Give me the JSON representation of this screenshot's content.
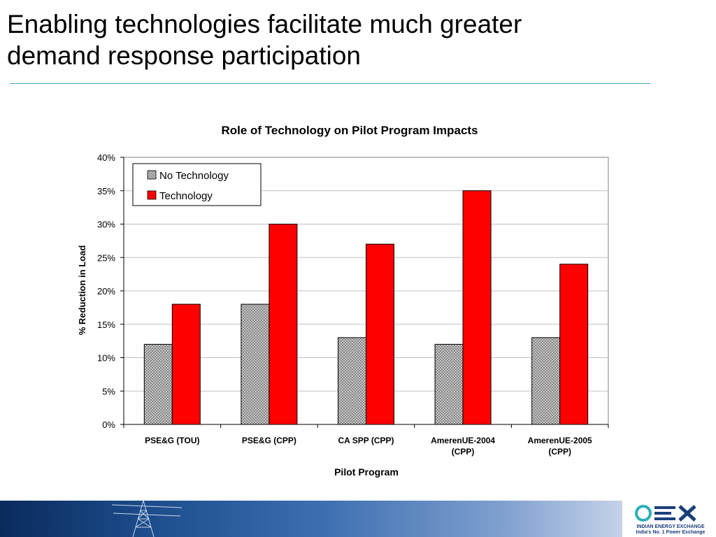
{
  "slide": {
    "title_lines": [
      "Enabling technologies facilitate much greater",
      "demand response participation"
    ]
  },
  "chart_data": {
    "type": "bar",
    "title": "Role of Technology on Pilot Program Impacts",
    "xlabel": "Pilot Program",
    "ylabel": "% Reduction in Load",
    "categories": [
      [
        "PSE&G (TOU)"
      ],
      [
        "PSE&G (CPP)"
      ],
      [
        "CA SPP (CPP)"
      ],
      [
        "AmerenUE-2004",
        "(CPP)"
      ],
      [
        "AmerenUE-2005",
        "(CPP)"
      ]
    ],
    "series": [
      {
        "name": "No Technology",
        "values": [
          12,
          18,
          13,
          12,
          13
        ],
        "color": "#b8b8b8",
        "pattern": "crosshatch"
      },
      {
        "name": "Technology",
        "values": [
          18,
          30,
          27,
          35,
          24
        ],
        "color": "#ff0000"
      }
    ],
    "ylim": [
      0,
      40
    ],
    "yticks": [
      0,
      5,
      10,
      15,
      20,
      25,
      30,
      35,
      40
    ],
    "ytick_suffix": "%",
    "grid": true,
    "legend": "top-left"
  },
  "footer": {
    "logo_tagline": [
      "INDIAN ENERGY EXCHANGE",
      "India's No. 1 Power Exchange"
    ]
  }
}
